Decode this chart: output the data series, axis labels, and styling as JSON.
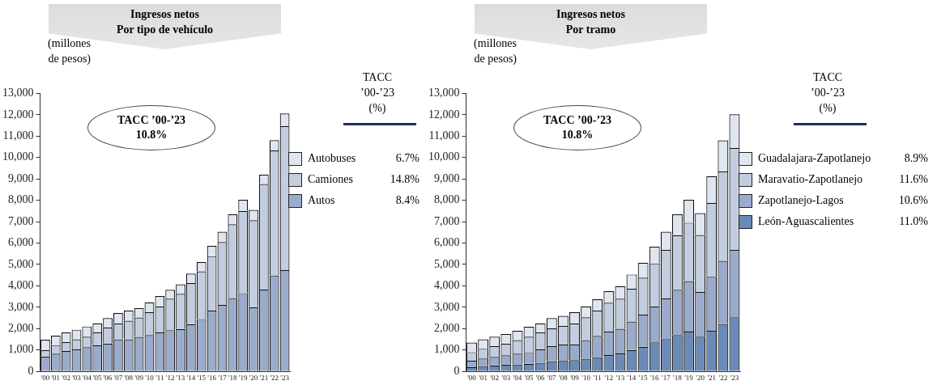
{
  "chart_data": [
    {
      "type": "bar",
      "title": "Ingresos netos\nPor tipo de vehículo",
      "ylabel": "(millones\nde pesos)",
      "stacked": true,
      "legend": "right",
      "grid": false,
      "categories": [
        "'00",
        "'01",
        "'02",
        "'03",
        "'04",
        "'05",
        "'06",
        "'07",
        "'08",
        "'09",
        "'10",
        "'11",
        "'12",
        "'13",
        "'14",
        "'15",
        "'16",
        "'17",
        "'18",
        "'19",
        "'20",
        "'21",
        "'22",
        "'23"
      ],
      "series": [
        {
          "name": "Autos",
          "color": "#9aabcb",
          "values": [
            700,
            830,
            950,
            1030,
            1130,
            1220,
            1300,
            1500,
            1500,
            1610,
            1700,
            1820,
            1930,
            1980,
            2210,
            2450,
            2840,
            3110,
            3430,
            3660,
            3000,
            3830,
            4490,
            4730
          ]
        },
        {
          "name": "Camiones",
          "color": "#c3cde0",
          "values": [
            300,
            400,
            430,
            470,
            490,
            600,
            760,
            750,
            870,
            910,
            1070,
            1220,
            1470,
            1650,
            1920,
            2230,
            2550,
            2940,
            3450,
            3840,
            4070,
            4930,
            5840,
            6740
          ]
        },
        {
          "name": "Autobuses",
          "color": "#e0e6f0",
          "values": [
            480,
            440,
            440,
            450,
            480,
            430,
            430,
            480,
            470,
            440,
            460,
            480,
            420,
            440,
            440,
            430,
            480,
            480,
            470,
            520,
            480,
            440,
            480,
            590
          ]
        }
      ],
      "ylim": [
        0,
        13000
      ],
      "yticks": [
        {
          "value": 0,
          "label": "0"
        },
        {
          "value": 1000,
          "label": "1,000"
        },
        {
          "value": 2000,
          "label": "2,000"
        },
        {
          "value": 3000,
          "label": "3,000"
        },
        {
          "value": 4000,
          "label": "4,000"
        },
        {
          "value": 5000,
          "label": "5,000"
        },
        {
          "value": 6000,
          "label": "6,000"
        },
        {
          "value": 7000,
          "label": "7,000"
        },
        {
          "value": 8000,
          "label": "8,000"
        },
        {
          "value": 9000,
          "label": "9,000"
        },
        {
          "value": 10000,
          "label": "10,000"
        },
        {
          "value": 11000,
          "label": "11,000"
        },
        {
          "value": 12000,
          "label": "12,000"
        },
        {
          "value": 13000,
          "label": "13,000"
        }
      ],
      "annotations": [
        "TACC ’00-’23\n10.8%",
        "TACC\n’00-’23\n(%)",
        "6.7%",
        "14.8%",
        "8.4%"
      ]
    },
    {
      "type": "bar",
      "title": "Ingresos netos\nPor tramo",
      "ylabel": "(millones\nde pesos)",
      "stacked": true,
      "legend": "right",
      "grid": false,
      "categories": [
        "'00",
        "'01",
        "'02",
        "'03",
        "'04",
        "'05",
        "'06",
        "'07",
        "'08",
        "'09",
        "'10",
        "'11",
        "'12",
        "'13",
        "'14",
        "'15",
        "'16",
        "'17",
        "'18",
        "'19",
        "'20",
        "'21",
        "'22",
        "'23"
      ],
      "series": [
        {
          "name": "León-Aguascalientes",
          "color": "#6a8ab8",
          "values": [
            200,
            250,
            280,
            320,
            330,
            360,
            400,
            480,
            520,
            530,
            590,
            670,
            760,
            840,
            1000,
            1150,
            1360,
            1510,
            1700,
            1860,
            1620,
            1900,
            2220,
            2530
          ]
        },
        {
          "name": "Zapotlanejo-Lagos",
          "color": "#9aabcb",
          "values": [
            300,
            350,
            400,
            430,
            500,
            540,
            630,
            700,
            740,
            730,
            870,
            990,
            1100,
            1150,
            1330,
            1500,
            1680,
            1900,
            2120,
            2360,
            2090,
            2520,
            2950,
            3150
          ]
        },
        {
          "name": "Maravatio-Zapotlanejo",
          "color": "#c3cde0",
          "values": [
            400,
            460,
            500,
            550,
            630,
            720,
            790,
            830,
            870,
            990,
            1070,
            1180,
            1350,
            1410,
            1530,
            1730,
            2010,
            2270,
            2550,
            2730,
            2670,
            3450,
            4180,
            4760
          ]
        },
        {
          "name": "Guadalajara-Zapotlanejo",
          "color": "#e0e6f0",
          "values": [
            450,
            440,
            440,
            450,
            440,
            470,
            430,
            480,
            470,
            520,
            510,
            530,
            540,
            590,
            670,
            700,
            780,
            850,
            980,
            1070,
            1020,
            1260,
            1450,
            1580
          ]
        }
      ],
      "ylim": [
        0,
        13000
      ],
      "yticks": [
        {
          "value": 0,
          "label": "0"
        },
        {
          "value": 1000,
          "label": "1,000"
        },
        {
          "value": 2000,
          "label": "2,000"
        },
        {
          "value": 3000,
          "label": "3,000"
        },
        {
          "value": 4000,
          "label": "4,000"
        },
        {
          "value": 5000,
          "label": "5,000"
        },
        {
          "value": 6000,
          "label": "6,000"
        },
        {
          "value": 7000,
          "label": "7,000"
        },
        {
          "value": 8000,
          "label": "8,000"
        },
        {
          "value": 9000,
          "label": "9,000"
        },
        {
          "value": 10000,
          "label": "10,000"
        },
        {
          "value": 11000,
          "label": "11,000"
        },
        {
          "value": 12000,
          "label": "12,000"
        },
        {
          "value": 13000,
          "label": "13,000"
        }
      ],
      "annotations": [
        "TACC ’00-’23\n10.8%",
        "TACC\n’00-’23\n(%)",
        "8.9%",
        "11.6%",
        "10.6%",
        "11.0%"
      ]
    }
  ]
}
